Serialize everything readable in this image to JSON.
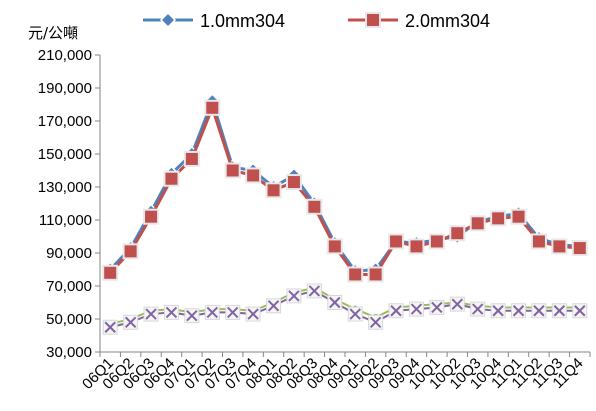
{
  "chart_data": {
    "type": "line",
    "ylabel": "元/公噸",
    "ylim": [
      30000,
      210000
    ],
    "yticks": [
      "210,000",
      "190,000",
      "170,000",
      "150,000",
      "130,000",
      "110,000",
      "90,000",
      "70,000",
      "50,000",
      "30,000"
    ],
    "ytick_values": [
      210000,
      190000,
      170000,
      150000,
      130000,
      110000,
      90000,
      70000,
      50000,
      30000
    ],
    "categories": [
      "06Q1",
      "06Q2",
      "06Q3",
      "06Q4",
      "07Q1",
      "07Q2",
      "07Q3",
      "07Q4",
      "08Q1",
      "08Q2",
      "08Q3",
      "08Q4",
      "09Q1",
      "09Q2",
      "09Q3",
      "09Q4",
      "10Q1",
      "10Q2",
      "10Q3",
      "10Q4",
      "11Q1",
      "11Q2",
      "11Q3",
      "11Q4"
    ],
    "grid": false,
    "legend_position": "top",
    "series": [
      {
        "name": "1.0mm304",
        "color": "#4f81bd",
        "marker": "diamond",
        "values": [
          80000,
          93000,
          115000,
          138000,
          150000,
          182000,
          142000,
          140000,
          130000,
          137000,
          120000,
          96000,
          79000,
          80000,
          97000,
          96000,
          98000,
          100000,
          109000,
          112000,
          114000,
          99000,
          95000,
          94000
        ]
      },
      {
        "name": "2.0mm304",
        "color": "#c0504d",
        "marker": "square",
        "values": [
          78000,
          91000,
          112000,
          135000,
          147000,
          178000,
          140000,
          137000,
          128000,
          133000,
          118000,
          94000,
          77000,
          77000,
          97000,
          94000,
          97000,
          102000,
          108000,
          111000,
          112000,
          97000,
          94000,
          93000
        ]
      },
      {
        "name": "",
        "color": "#9bbb59",
        "marker": "circle",
        "values": [
          47000,
          50000,
          55000,
          56000,
          54000,
          56000,
          56000,
          55000,
          60000,
          66000,
          69000,
          62000,
          56000,
          51000,
          57000,
          58000,
          59000,
          60000,
          58000,
          57000,
          57000,
          57000,
          57000,
          57000
        ]
      },
      {
        "name": "",
        "color": "#8064a2",
        "marker": "x",
        "values": [
          45000,
          48000,
          53000,
          54000,
          52000,
          54000,
          54000,
          53000,
          58000,
          64000,
          67000,
          60000,
          53000,
          48000,
          55000,
          56000,
          57000,
          59000,
          56000,
          55000,
          55000,
          55000,
          55000,
          55000
        ]
      }
    ]
  }
}
